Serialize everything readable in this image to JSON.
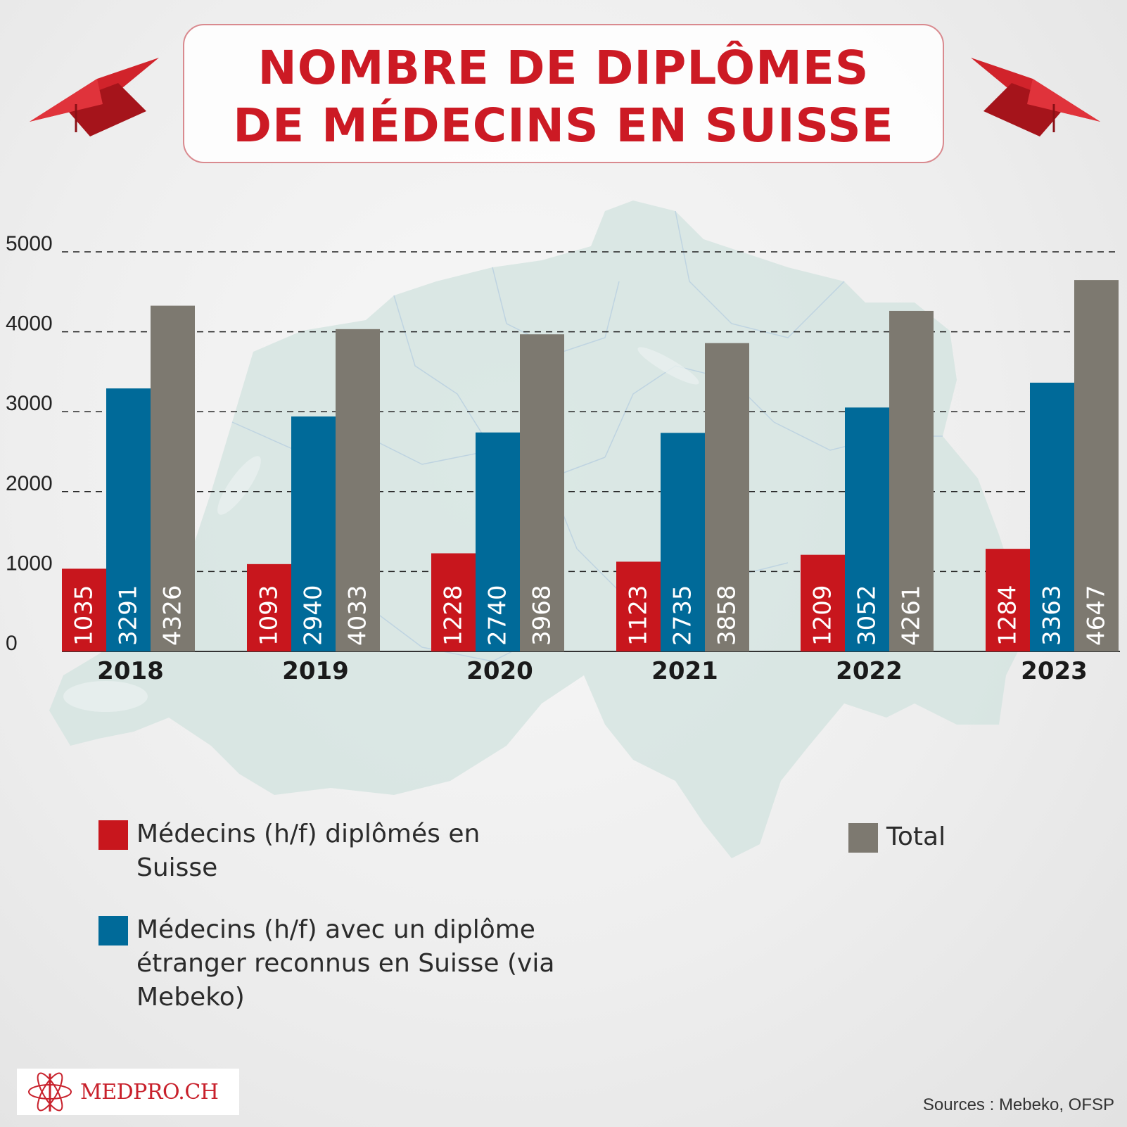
{
  "header": {
    "title_line1": "NOMBRE DE DIPLÔMES",
    "title_line2": "DE MÉDECINS EN SUISSE"
  },
  "colors": {
    "swiss": "#c8161d",
    "foreign": "#006a99",
    "total": "#7d7970",
    "title": "#cc1a24",
    "map": "#d3e3e0"
  },
  "chart_data": {
    "type": "bar",
    "categories": [
      "2018",
      "2019",
      "2020",
      "2021",
      "2022",
      "2023"
    ],
    "series": [
      {
        "name": "Médecins (h/f) diplômés en Suisse",
        "values": [
          1035,
          1093,
          1228,
          1123,
          1209,
          1284
        ]
      },
      {
        "name": "Médecins (h/f) avec un diplôme étranger reconnus en Suisse (via Mebeko)",
        "values": [
          3291,
          2940,
          2740,
          2735,
          3052,
          3363
        ]
      },
      {
        "name": "Total",
        "values": [
          4326,
          4033,
          3968,
          3858,
          4261,
          4647
        ]
      }
    ],
    "data_labels": [
      [
        "1035",
        "3291",
        "4326"
      ],
      [
        "1093",
        "2940",
        "4033"
      ],
      [
        "1228",
        "2740",
        "3968"
      ],
      [
        "1123",
        "2735",
        "3858"
      ],
      [
        "1209",
        "3052",
        "4261"
      ],
      [
        "1284",
        "3363",
        "4647"
      ]
    ],
    "yticks": [
      0,
      1000,
      2000,
      3000,
      4000,
      5000
    ],
    "ylim": [
      0,
      5000
    ],
    "grid": "dashed horizontal",
    "legend_position": "bottom"
  },
  "legend": {
    "swiss_line1": "Médecins (h/f) diplômés en",
    "swiss_line2": "Suisse",
    "foreign_line1": "Médecins (h/f) avec un diplôme",
    "foreign_line2": "étranger reconnus en Suisse (via",
    "foreign_line3": "Mebeko)",
    "total": "Total"
  },
  "footer": {
    "logo_text": "MEDPRO.CH",
    "logo_icon": "caduceus-atom-icon",
    "sources": "Sources : Mebeko, OFSP"
  },
  "decorations": {
    "left_icon": "graduation-cap-icon",
    "right_icon": "graduation-cap-icon",
    "background": "switzerland-map"
  }
}
